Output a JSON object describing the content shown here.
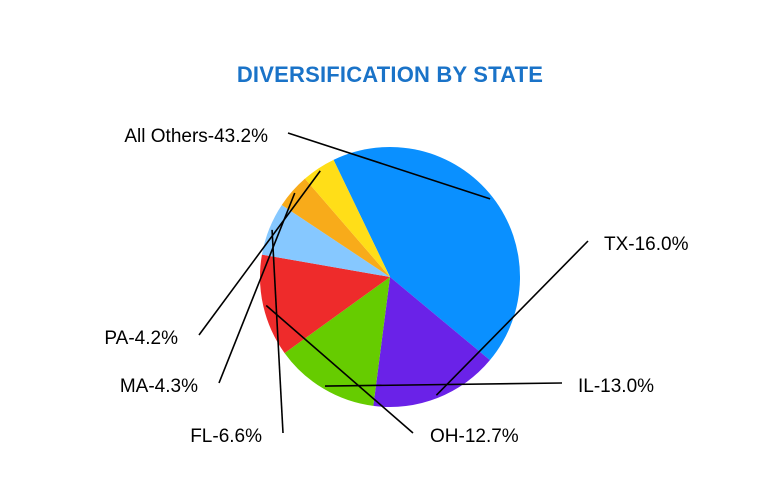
{
  "chart_data": {
    "type": "pie",
    "title": "DIVERSIFICATION BY STATE",
    "slices": [
      {
        "name": "All Others",
        "value": 43.2,
        "label": "All Others-43.2%",
        "color": "#0a90ff"
      },
      {
        "name": "TX",
        "value": 16.0,
        "label": "TX-16.0%",
        "color": "#6a22e8"
      },
      {
        "name": "IL",
        "value": 13.0,
        "label": "IL-13.0%",
        "color": "#66cc00"
      },
      {
        "name": "OH",
        "value": 12.7,
        "label": "OH-12.7%",
        "color": "#ee2b2b"
      },
      {
        "name": "FL",
        "value": 6.6,
        "label": "FL-6.6%",
        "color": "#86c8ff"
      },
      {
        "name": "MA",
        "value": 4.3,
        "label": "MA-4.3%",
        "color": "#f8ab1a"
      },
      {
        "name": "PA",
        "value": 4.2,
        "label": "PA-4.2%",
        "color": "#ffde18"
      }
    ],
    "legend": "none"
  }
}
